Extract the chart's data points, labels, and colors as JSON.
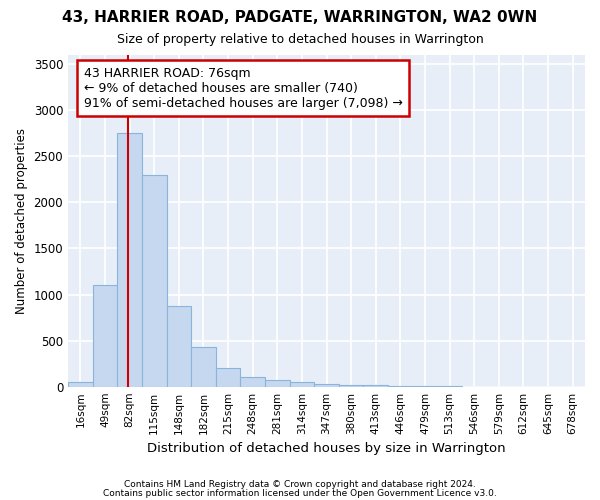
{
  "title": "43, HARRIER ROAD, PADGATE, WARRINGTON, WA2 0WN",
  "subtitle": "Size of property relative to detached houses in Warrington",
  "xlabel": "Distribution of detached houses by size in Warrington",
  "ylabel": "Number of detached properties",
  "bins": [
    "16sqm",
    "49sqm",
    "82sqm",
    "115sqm",
    "148sqm",
    "182sqm",
    "215sqm",
    "248sqm",
    "281sqm",
    "314sqm",
    "347sqm",
    "380sqm",
    "413sqm",
    "446sqm",
    "479sqm",
    "513sqm",
    "546sqm",
    "579sqm",
    "612sqm",
    "645sqm",
    "678sqm"
  ],
  "bar_heights": [
    50,
    1100,
    2750,
    2300,
    880,
    430,
    200,
    110,
    75,
    55,
    30,
    20,
    15,
    5,
    3,
    2,
    1,
    1,
    0,
    0,
    0
  ],
  "bar_color": "#c5d8f0",
  "bar_edge_color": "#8ab4d9",
  "vline_x_bar_idx": 1.94,
  "annotation_title": "43 HARRIER ROAD: 76sqm",
  "annotation_line1": "← 9% of detached houses are smaller (740)",
  "annotation_line2": "91% of semi-detached houses are larger (7,098) →",
  "annotation_box_color": "#ffffff",
  "annotation_box_edge_color": "#cc0000",
  "vline_color": "#cc0000",
  "ylim": [
    0,
    3600
  ],
  "yticks": [
    0,
    500,
    1000,
    1500,
    2000,
    2500,
    3000,
    3500
  ],
  "footnote1": "Contains HM Land Registry data © Crown copyright and database right 2024.",
  "footnote2": "Contains public sector information licensed under the Open Government Licence v3.0.",
  "bg_color": "#ffffff",
  "plot_bg_color": "#e8eef8",
  "grid_color": "#ffffff"
}
